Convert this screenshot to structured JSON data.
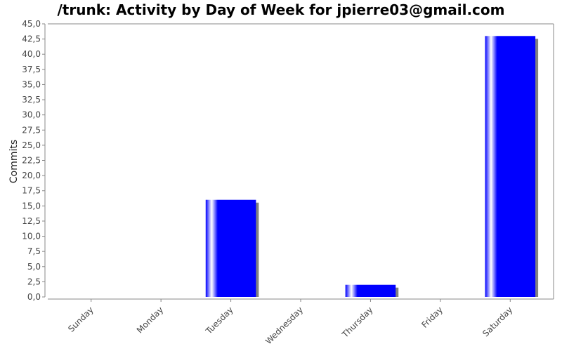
{
  "chart_data": {
    "type": "bar",
    "title": "/trunk: Activity by Day of Week for jpierre03@gmail.com",
    "xlabel": "",
    "ylabel": "Commits",
    "categories": [
      "Sunday",
      "Monday",
      "Tuesday",
      "Wednesday",
      "Thursday",
      "Friday",
      "Saturday"
    ],
    "values": [
      0,
      0,
      16,
      0,
      2,
      0,
      43
    ],
    "ylim": [
      0,
      45
    ],
    "ytick_step": 2.5,
    "yticks": [
      "0,0",
      "2,5",
      "5,0",
      "7,5",
      "10,0",
      "12,5",
      "15,0",
      "17,5",
      "20,0",
      "22,5",
      "25,0",
      "27,5",
      "30,0",
      "32,5",
      "35,0",
      "37,5",
      "40,0",
      "42,5",
      "45,0"
    ],
    "grid": false,
    "legend": "none",
    "colors": {
      "bar": "#0000ff",
      "bar_highlight": "#ffffff",
      "shadow": "#808080",
      "axis": "#888888"
    }
  }
}
